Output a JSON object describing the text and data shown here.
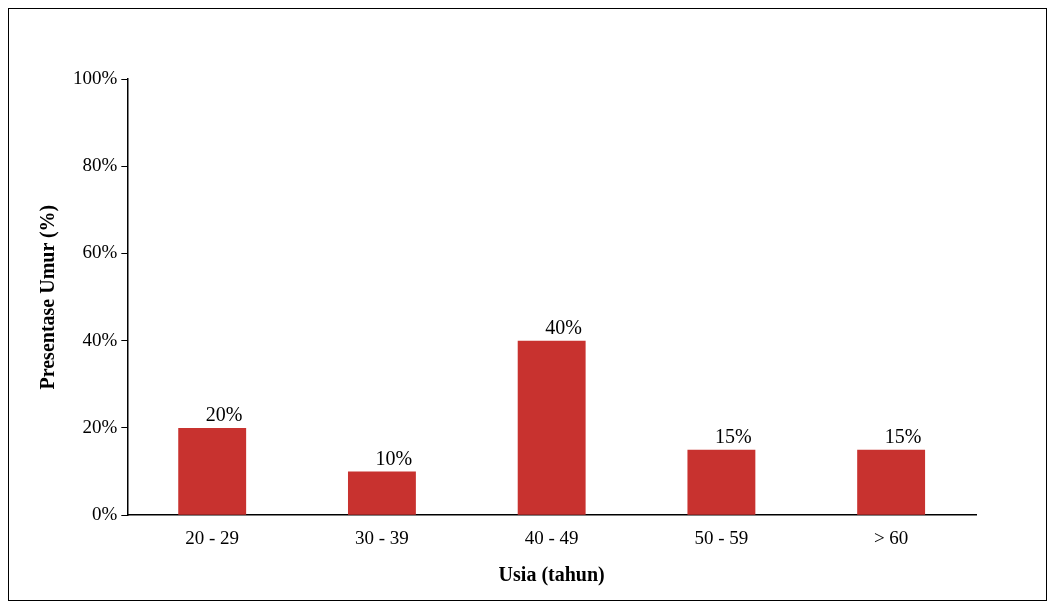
{
  "chart_data": {
    "type": "bar",
    "xlabel": "Usia (tahun)",
    "ylabel": "Presentase Umur (%)",
    "categories": [
      "20 - 29",
      "30 - 39",
      "40 - 49",
      "50 - 59",
      "> 60"
    ],
    "values": [
      20,
      10,
      40,
      15,
      15
    ],
    "value_labels": [
      "20%",
      "10%",
      "40%",
      "15%",
      "15%"
    ],
    "color": "#c8322f",
    "ylim": [
      0,
      100
    ],
    "yticks": [
      {
        "value": 0,
        "label": "0%"
      },
      {
        "value": 20,
        "label": "20%"
      },
      {
        "value": 40,
        "label": "40%"
      },
      {
        "value": 60,
        "label": "60%"
      },
      {
        "value": 80,
        "label": "80%"
      },
      {
        "value": 100,
        "label": "100%"
      }
    ],
    "grid": false,
    "legend": false
  }
}
